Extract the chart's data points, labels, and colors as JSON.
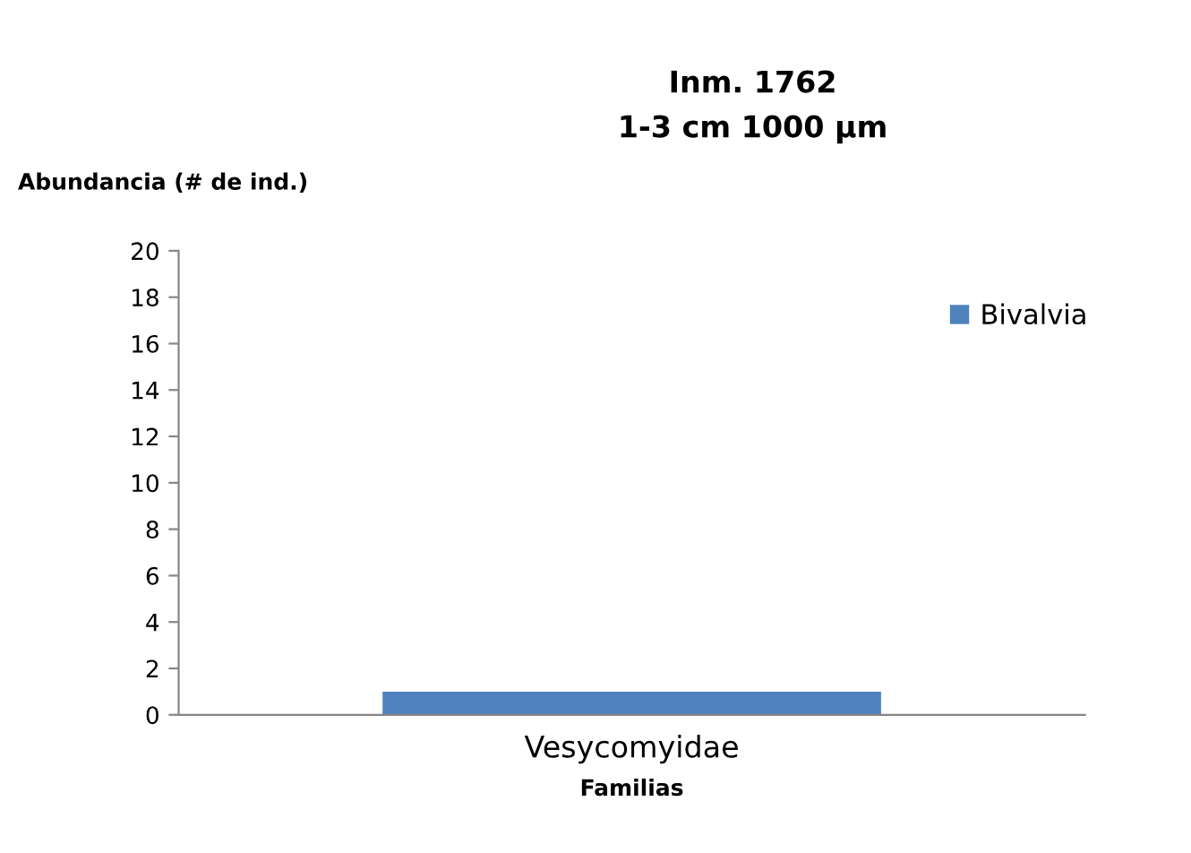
{
  "chart_data": {
    "type": "bar",
    "title": "Inm. 1762\n1-3 cm 1000 µm",
    "ylabel": "Abundancia (# de ind.)",
    "xlabel": "Familias",
    "categories": [
      "Vesycomyidae"
    ],
    "series": [
      {
        "name": "Bivalvia",
        "color": "#4f81bd",
        "values": [
          1
        ]
      }
    ],
    "ylim": [
      0,
      20
    ],
    "yticks": [
      0,
      2,
      4,
      6,
      8,
      10,
      12,
      14,
      16,
      18,
      20
    ],
    "grid": false,
    "legend": "top right"
  }
}
